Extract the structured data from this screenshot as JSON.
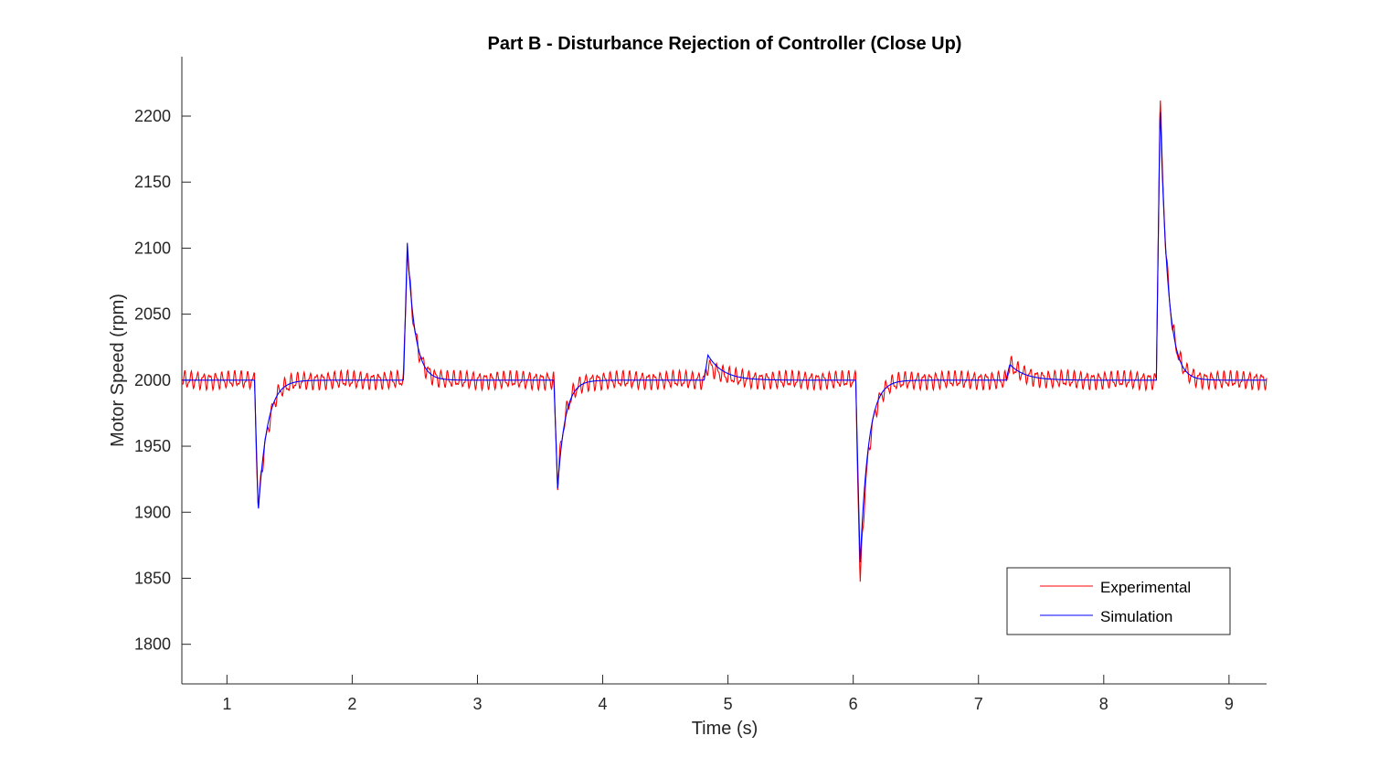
{
  "chart_data": {
    "type": "line",
    "title": "Part B - Disturbance Rejection of Controller (Close Up)",
    "xlabel": "Time (s)",
    "ylabel": "Motor Speed (rpm)",
    "xlim": [
      0.64,
      9.3
    ],
    "ylim": [
      1770,
      2245
    ],
    "xticks": [
      1,
      2,
      3,
      4,
      5,
      6,
      7,
      8,
      9
    ],
    "yticks": [
      1800,
      1850,
      1900,
      1950,
      2000,
      2050,
      2100,
      2150,
      2200
    ],
    "grid": false,
    "legend_position": "bottom-right",
    "baseline": 2000,
    "disturbances": [
      {
        "t": 1.22,
        "peak_sim": 1900,
        "peak_exp": 1895,
        "tau": 0.07,
        "rise": 0.03,
        "exp_extra": 6,
        "sim_extra": 0
      },
      {
        "t": 2.41,
        "peak_sim": 2104,
        "peak_exp": 2102,
        "tau": 0.06,
        "rise": 0.03,
        "exp_extra": 0,
        "sim_extra": 0
      },
      {
        "t": 3.61,
        "peak_sim": 1918,
        "peak_exp": 1922,
        "tau": 0.06,
        "rise": 0.03,
        "exp_extra": 0,
        "sim_extra": 0
      },
      {
        "t": 4.81,
        "peak_sim": 2019,
        "peak_exp": 2012,
        "tau": 0.12,
        "rise": 0.03,
        "exp_extra": 0,
        "sim_extra": 0
      },
      {
        "t": 6.02,
        "peak_sim": 1860,
        "peak_exp": 1844,
        "tau": 0.065,
        "rise": 0.035,
        "exp_extra": 0,
        "sim_extra": 0
      },
      {
        "t": 7.22,
        "peak_sim": 2012,
        "peak_exp": 2012,
        "tau": 0.12,
        "rise": 0.03,
        "exp_extra": 0,
        "sim_extra": 0
      },
      {
        "t": 8.42,
        "peak_sim": 2210,
        "peak_exp": 2216,
        "tau": 0.06,
        "rise": 0.03,
        "exp_extra": 0,
        "sim_extra": 0
      }
    ],
    "noise_amplitude_rpm": 5,
    "noise_period_s": 0.05,
    "series": [
      {
        "name": "Experimental",
        "color": "#ff0000"
      },
      {
        "name": "Simulation",
        "color": "#0000ff"
      }
    ]
  }
}
